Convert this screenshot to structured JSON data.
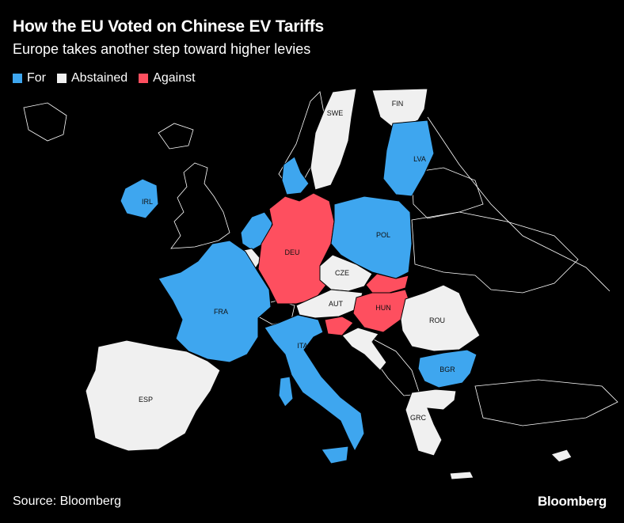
{
  "header": {
    "title": "How the EU Voted on Chinese EV Tariffs",
    "subtitle": "Europe takes another step toward higher levies"
  },
  "legend": [
    {
      "label": "For",
      "color": "#3ea6ef"
    },
    {
      "label": "Abstained",
      "color": "#f0f0f0"
    },
    {
      "label": "Against",
      "color": "#fe4f5f"
    }
  ],
  "countries": {
    "SWE": {
      "label": "SWE",
      "vote": "Abstained"
    },
    "FIN": {
      "label": "FIN",
      "vote": "Abstained"
    },
    "LVA": {
      "label": "LVA",
      "vote": "For"
    },
    "IRL": {
      "label": "IRL",
      "vote": "For"
    },
    "DEU": {
      "label": "DEU",
      "vote": "Against"
    },
    "POL": {
      "label": "POL",
      "vote": "For"
    },
    "CZE": {
      "label": "CZE",
      "vote": "Abstained"
    },
    "AUT": {
      "label": "AUT",
      "vote": "Abstained"
    },
    "HUN": {
      "label": "HUN",
      "vote": "Against"
    },
    "FRA": {
      "label": "FRA",
      "vote": "For"
    },
    "ROU": {
      "label": "ROU",
      "vote": "Abstained"
    },
    "ITA": {
      "label": "ITA",
      "vote": "For"
    },
    "BGR": {
      "label": "BGR",
      "vote": "For"
    },
    "ESP": {
      "label": "ESP",
      "vote": "Abstained"
    },
    "GRC": {
      "label": "GRC",
      "vote": "Abstained"
    }
  },
  "footer": {
    "source": "Source: Bloomberg",
    "brand": "Bloomberg"
  }
}
